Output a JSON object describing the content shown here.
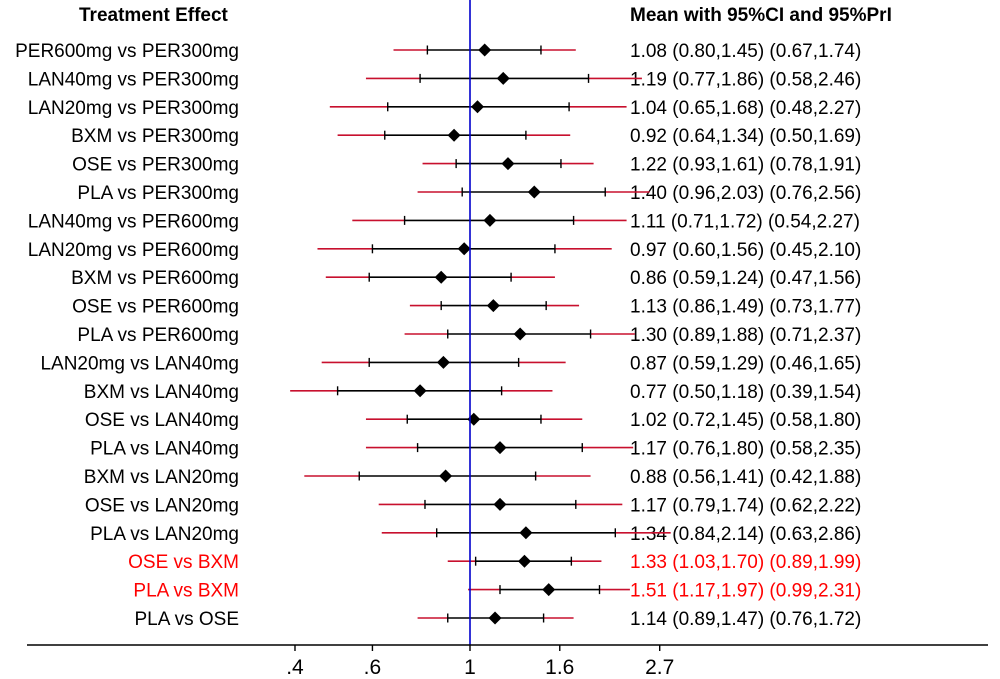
{
  "chart_data": {
    "type": "forest",
    "title": "",
    "label_header": "Treatment Effect",
    "value_header": "Mean with 95%CI and 95%PrI",
    "scale": "log",
    "reference_line": 1,
    "x_ticks": [
      0.4,
      0.6,
      1,
      1.6,
      2.7
    ],
    "x_tick_labels": [
      ".4",
      ".6",
      "1",
      "1.6",
      "2.7"
    ],
    "colors": {
      "text": "#000000",
      "highlight": "#ff0000",
      "prediction_interval": "#c8102e",
      "confidence_interval": "#000000",
      "reference_line": "#0000cc"
    },
    "rows": [
      {
        "label": "PER600mg vs PER300mg",
        "mean": 1.08,
        "ci": [
          0.8,
          1.45
        ],
        "pri": [
          0.67,
          1.74
        ],
        "text": "1.08 (0.80,1.45)  (0.67,1.74)",
        "highlight": false
      },
      {
        "label": "LAN40mg vs PER300mg",
        "mean": 1.19,
        "ci": [
          0.77,
          1.86
        ],
        "pri": [
          0.58,
          2.46
        ],
        "text": "1.19 (0.77,1.86)  (0.58,2.46)",
        "highlight": false
      },
      {
        "label": "LAN20mg vs PER300mg",
        "mean": 1.04,
        "ci": [
          0.65,
          1.68
        ],
        "pri": [
          0.48,
          2.27
        ],
        "text": "1.04 (0.65,1.68)  (0.48,2.27)",
        "highlight": false
      },
      {
        "label": "BXM vs PER300mg",
        "mean": 0.92,
        "ci": [
          0.64,
          1.34
        ],
        "pri": [
          0.5,
          1.69
        ],
        "text": "0.92 (0.64,1.34)  (0.50,1.69)",
        "highlight": false
      },
      {
        "label": "OSE vs PER300mg",
        "mean": 1.22,
        "ci": [
          0.93,
          1.61
        ],
        "pri": [
          0.78,
          1.91
        ],
        "text": "1.22 (0.93,1.61)  (0.78,1.91)",
        "highlight": false
      },
      {
        "label": "PLA vs PER300mg",
        "mean": 1.4,
        "ci": [
          0.96,
          2.03
        ],
        "pri": [
          0.76,
          2.56
        ],
        "text": "1.40 (0.96,2.03)  (0.76,2.56)",
        "highlight": false
      },
      {
        "label": "LAN40mg vs PER600mg",
        "mean": 1.11,
        "ci": [
          0.71,
          1.72
        ],
        "pri": [
          0.54,
          2.27
        ],
        "text": "1.11 (0.71,1.72)  (0.54,2.27)",
        "highlight": false
      },
      {
        "label": "LAN20mg vs PER600mg",
        "mean": 0.97,
        "ci": [
          0.6,
          1.56
        ],
        "pri": [
          0.45,
          2.1
        ],
        "text": "0.97 (0.60,1.56)  (0.45,2.10)",
        "highlight": false
      },
      {
        "label": "BXM vs PER600mg",
        "mean": 0.86,
        "ci": [
          0.59,
          1.24
        ],
        "pri": [
          0.47,
          1.56
        ],
        "text": "0.86 (0.59,1.24)  (0.47,1.56)",
        "highlight": false
      },
      {
        "label": "OSE vs PER600mg",
        "mean": 1.13,
        "ci": [
          0.86,
          1.49
        ],
        "pri": [
          0.73,
          1.77
        ],
        "text": "1.13 (0.86,1.49)  (0.73,1.77)",
        "highlight": false
      },
      {
        "label": "PLA vs PER600mg",
        "mean": 1.3,
        "ci": [
          0.89,
          1.88
        ],
        "pri": [
          0.71,
          2.37
        ],
        "text": "1.30 (0.89,1.88)  (0.71,2.37)",
        "highlight": false
      },
      {
        "label": "LAN20mg vs LAN40mg",
        "mean": 0.87,
        "ci": [
          0.59,
          1.29
        ],
        "pri": [
          0.46,
          1.65
        ],
        "text": "0.87 (0.59,1.29)  (0.46,1.65)",
        "highlight": false
      },
      {
        "label": "BXM vs LAN40mg",
        "mean": 0.77,
        "ci": [
          0.5,
          1.18
        ],
        "pri": [
          0.39,
          1.54
        ],
        "text": "0.77 (0.50,1.18)  (0.39,1.54)",
        "highlight": false
      },
      {
        "label": "OSE vs LAN40mg",
        "mean": 1.02,
        "ci": [
          0.72,
          1.45
        ],
        "pri": [
          0.58,
          1.8
        ],
        "text": "1.02 (0.72,1.45)  (0.58,1.80)",
        "highlight": false
      },
      {
        "label": "PLA vs LAN40mg",
        "mean": 1.17,
        "ci": [
          0.76,
          1.8
        ],
        "pri": [
          0.58,
          2.35
        ],
        "text": "1.17 (0.76,1.80)  (0.58,2.35)",
        "highlight": false
      },
      {
        "label": "BXM vs LAN20mg",
        "mean": 0.88,
        "ci": [
          0.56,
          1.41
        ],
        "pri": [
          0.42,
          1.88
        ],
        "text": "0.88 (0.56,1.41)  (0.42,1.88)",
        "highlight": false
      },
      {
        "label": "OSE vs LAN20mg",
        "mean": 1.17,
        "ci": [
          0.79,
          1.74
        ],
        "pri": [
          0.62,
          2.22
        ],
        "text": "1.17 (0.79,1.74)  (0.62,2.22)",
        "highlight": false
      },
      {
        "label": "PLA vs LAN20mg",
        "mean": 1.34,
        "ci": [
          0.84,
          2.14
        ],
        "pri": [
          0.63,
          2.86
        ],
        "text": "1.34 (0.84,2.14)  (0.63,2.86)",
        "highlight": false
      },
      {
        "label": "OSE vs BXM",
        "mean": 1.33,
        "ci": [
          1.03,
          1.7
        ],
        "pri": [
          0.89,
          1.99
        ],
        "text": "1.33 (1.03,1.70)  (0.89,1.99)",
        "highlight": true
      },
      {
        "label": "PLA vs BXM",
        "mean": 1.51,
        "ci": [
          1.17,
          1.97
        ],
        "pri": [
          0.99,
          2.31
        ],
        "text": "1.51 (1.17,1.97)  (0.99,2.31)",
        "highlight": true
      },
      {
        "label": "PLA vs OSE",
        "mean": 1.14,
        "ci": [
          0.89,
          1.47
        ],
        "pri": [
          0.76,
          1.72
        ],
        "text": "1.14 (0.89,1.47)  (0.76,1.72)",
        "highlight": false
      }
    ]
  }
}
